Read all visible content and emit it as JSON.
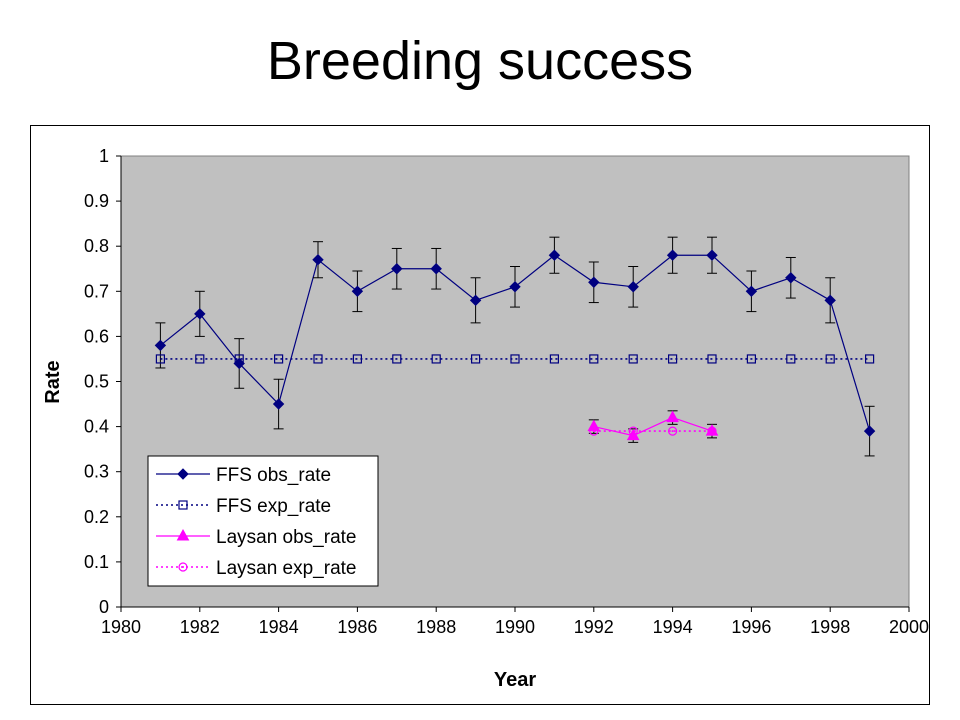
{
  "page": {
    "title": "Breeding success"
  },
  "chart_data": {
    "type": "line",
    "title": "",
    "xlabel": "Year",
    "ylabel": "Rate",
    "xlim": [
      1980,
      2000
    ],
    "ylim": [
      0,
      1
    ],
    "xticks": [
      1980,
      1982,
      1984,
      1986,
      1988,
      1990,
      1992,
      1994,
      1996,
      1998,
      2000
    ],
    "yticks": [
      0,
      0.1,
      0.2,
      0.3,
      0.4,
      0.5,
      0.6,
      0.7,
      0.8,
      0.9,
      1
    ],
    "grid": false,
    "legend_position": "bottom-left",
    "plot_background": "#c0c0c0",
    "series": [
      {
        "name": "FFS obs_rate",
        "color": "#000080",
        "line_style": "solid",
        "marker": "diamond",
        "x": [
          1981,
          1982,
          1983,
          1984,
          1985,
          1986,
          1987,
          1988,
          1989,
          1990,
          1991,
          1992,
          1993,
          1994,
          1995,
          1996,
          1997,
          1998,
          1999
        ],
        "y": [
          0.58,
          0.65,
          0.54,
          0.45,
          0.77,
          0.7,
          0.75,
          0.75,
          0.68,
          0.71,
          0.78,
          0.72,
          0.71,
          0.78,
          0.78,
          0.7,
          0.73,
          0.68,
          0.39
        ],
        "err": [
          0.05,
          0.05,
          0.055,
          0.055,
          0.04,
          0.045,
          0.045,
          0.045,
          0.05,
          0.045,
          0.04,
          0.045,
          0.045,
          0.04,
          0.04,
          0.045,
          0.045,
          0.05,
          0.055
        ]
      },
      {
        "name": "FFS exp_rate",
        "color": "#000080",
        "line_style": "dotted",
        "marker": "square-open",
        "x": [
          1981,
          1982,
          1983,
          1984,
          1985,
          1986,
          1987,
          1988,
          1989,
          1990,
          1991,
          1992,
          1993,
          1994,
          1995,
          1996,
          1997,
          1998,
          1999
        ],
        "y": [
          0.55,
          0.55,
          0.55,
          0.55,
          0.55,
          0.55,
          0.55,
          0.55,
          0.55,
          0.55,
          0.55,
          0.55,
          0.55,
          0.55,
          0.55,
          0.55,
          0.55,
          0.55,
          0.55
        ]
      },
      {
        "name": "Laysan obs_rate",
        "color": "#ff00ff",
        "line_style": "solid",
        "marker": "triangle",
        "x": [
          1992,
          1993,
          1994,
          1995
        ],
        "y": [
          0.4,
          0.38,
          0.42,
          0.39
        ],
        "err": [
          0.015,
          0.015,
          0.015,
          0.015
        ]
      },
      {
        "name": "Laysan exp_rate",
        "color": "#ff00ff",
        "line_style": "dotted",
        "marker": "circle-open",
        "x": [
          1992,
          1993,
          1994,
          1995
        ],
        "y": [
          0.39,
          0.39,
          0.39,
          0.39
        ]
      }
    ]
  }
}
